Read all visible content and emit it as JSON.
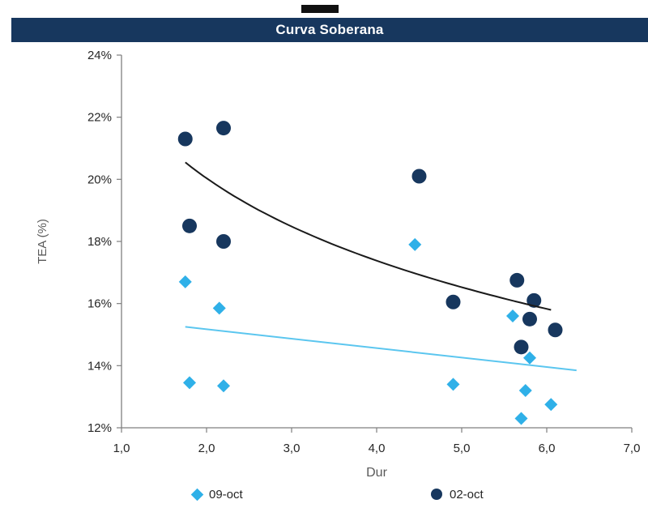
{
  "header": {
    "title": "Curva Soberana",
    "bar_color": "#17375E"
  },
  "chart_data": {
    "type": "scatter",
    "title": "Curva Soberana",
    "xlabel": "Dur",
    "ylabel": "TEA (%)",
    "xlim": [
      1.0,
      7.0
    ],
    "ylim": [
      12,
      24
    ],
    "grid": false,
    "legend_position": "bottom",
    "x_ticks": [
      {
        "v": 1,
        "label": "1,0"
      },
      {
        "v": 2,
        "label": "2,0"
      },
      {
        "v": 3,
        "label": "3,0"
      },
      {
        "v": 4,
        "label": "4,0"
      },
      {
        "v": 5,
        "label": "5,0"
      },
      {
        "v": 6,
        "label": "6,0"
      },
      {
        "v": 7,
        "label": "7,0"
      }
    ],
    "y_ticks": [
      {
        "v": 12,
        "label": "12%"
      },
      {
        "v": 14,
        "label": "14%"
      },
      {
        "v": 16,
        "label": "16%"
      },
      {
        "v": 18,
        "label": "18%"
      },
      {
        "v": 20,
        "label": "20%"
      },
      {
        "v": 22,
        "label": "22%"
      },
      {
        "v": 24,
        "label": "24%"
      }
    ],
    "series": [
      {
        "name": "02-oct",
        "marker": "circle",
        "color": "#17375E",
        "points": [
          [
            1.75,
            21.3
          ],
          [
            2.2,
            21.65
          ],
          [
            1.8,
            18.5
          ],
          [
            2.2,
            18.0
          ],
          [
            4.5,
            20.1
          ],
          [
            4.9,
            16.05
          ],
          [
            5.65,
            16.75
          ],
          [
            5.85,
            16.1
          ],
          [
            5.8,
            15.5
          ],
          [
            6.1,
            15.15
          ],
          [
            5.7,
            14.6
          ]
        ]
      },
      {
        "name": "09-oct",
        "marker": "diamond",
        "color": "#2FB0E8",
        "points": [
          [
            1.75,
            16.7
          ],
          [
            2.15,
            15.85
          ],
          [
            1.8,
            13.45
          ],
          [
            2.2,
            13.35
          ],
          [
            4.45,
            17.9
          ],
          [
            4.9,
            13.4
          ],
          [
            5.6,
            15.6
          ],
          [
            5.8,
            14.25
          ],
          [
            5.75,
            13.2
          ],
          [
            5.7,
            12.3
          ],
          [
            6.05,
            12.75
          ]
        ]
      }
    ],
    "trendlines": [
      {
        "series": "02-oct",
        "type": "log",
        "a": 22.69,
        "b": -3.83,
        "x_start": 1.75,
        "x_end": 6.05,
        "color": "#1a1a1a",
        "width": 2
      },
      {
        "series": "09-oct",
        "type": "linear",
        "x_start": 1.75,
        "y_start": 15.25,
        "x_end": 6.35,
        "y_end": 13.85,
        "color": "#5BC6EF",
        "width": 2
      }
    ],
    "legend": [
      {
        "label": "09-oct",
        "marker": "diamond",
        "color": "#2FB0E8"
      },
      {
        "label": "02-oct",
        "marker": "circle",
        "color": "#17375E"
      }
    ],
    "axis_color": "#7F7F7F",
    "tick_text_color": "#262626"
  }
}
